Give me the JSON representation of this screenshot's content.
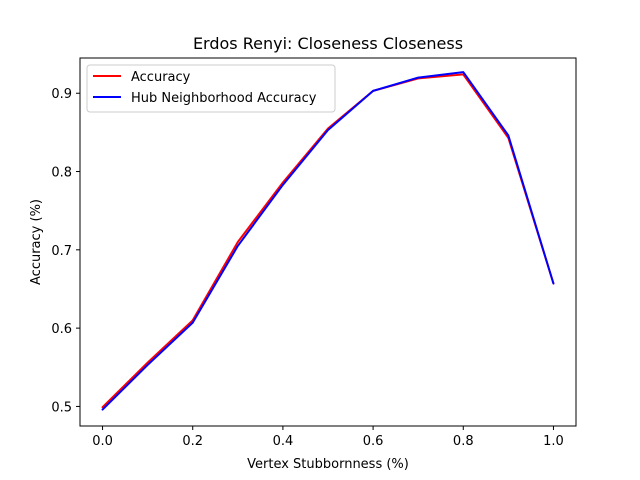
{
  "chart_data": {
    "type": "line",
    "title": "Erdos Renyi: Closeness Closeness",
    "xlabel": "Vertex Stubbornness (%)",
    "ylabel": "Accuracy (%)",
    "xlim": [
      -0.05,
      1.05
    ],
    "ylim": [
      0.475,
      0.945
    ],
    "x": [
      0.0,
      0.1,
      0.2,
      0.3,
      0.4,
      0.5,
      0.6,
      0.7,
      0.8,
      0.9,
      1.0
    ],
    "xticks": [
      "0.0",
      "0.2",
      "0.4",
      "0.6",
      "0.8",
      "1.0"
    ],
    "yticks": [
      "0.5",
      "0.6",
      "0.7",
      "0.8",
      "0.9"
    ],
    "grid": false,
    "legend_position": "top-left",
    "series": [
      {
        "name": "Accuracy",
        "color": "#ff0000",
        "values": [
          0.499,
          0.556,
          0.61,
          0.71,
          0.786,
          0.855,
          0.903,
          0.919,
          0.924,
          0.843,
          0.657
        ]
      },
      {
        "name": "Hub Neighborhood Accuracy",
        "color": "#0000ff",
        "values": [
          0.496,
          0.553,
          0.607,
          0.705,
          0.783,
          0.853,
          0.903,
          0.92,
          0.927,
          0.846,
          0.657
        ]
      }
    ]
  }
}
